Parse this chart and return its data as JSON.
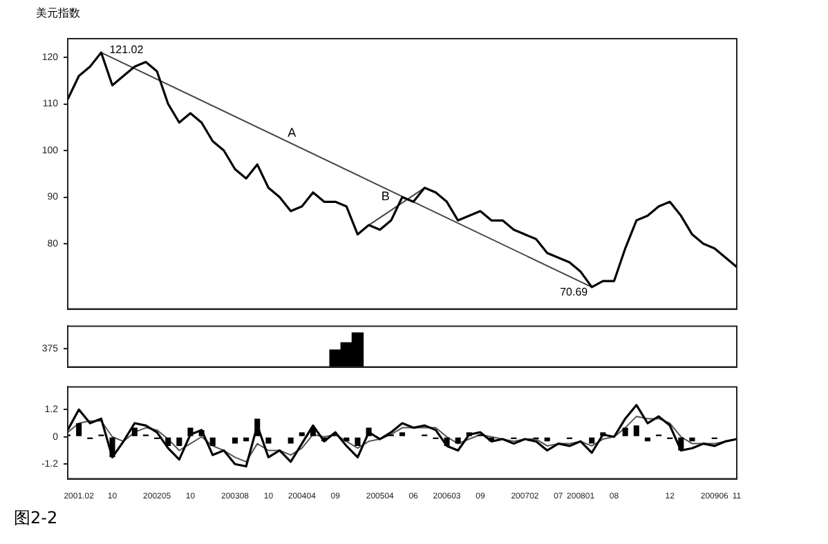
{
  "chart_data": [
    {
      "type": "line",
      "title": "美元指数",
      "tick_labels": "y",
      "grid": false,
      "legend": false,
      "marker": "none",
      "line_style": "solid",
      "ylim": [
        66,
        124
      ],
      "yticks": [
        80,
        90,
        100,
        110,
        120
      ],
      "categories": [
        null,
        "2001.02",
        null,
        null,
        "10",
        null,
        null,
        null,
        "200205",
        null,
        null,
        "10",
        null,
        null,
        null,
        "200308",
        null,
        null,
        "10",
        null,
        null,
        "200404",
        null,
        null,
        "09",
        null,
        null,
        null,
        "200504",
        null,
        null,
        "06",
        null,
        null,
        "200603",
        null,
        null,
        "09",
        null,
        null,
        null,
        "200702",
        null,
        null,
        "07",
        null,
        "200801",
        null,
        null,
        "08",
        null,
        null,
        null,
        null,
        "12",
        null,
        null,
        null,
        "200906",
        null,
        "11"
      ],
      "series": [
        {
          "color": "#000000",
          "values": [
            111,
            116,
            118,
            121.02,
            114,
            116,
            118,
            119,
            117,
            110,
            106,
            108,
            106,
            102,
            100,
            96,
            94,
            97,
            92,
            90,
            87,
            88,
            91,
            89,
            89,
            88,
            82,
            84,
            83,
            85,
            90,
            89,
            92,
            91,
            89,
            85,
            86,
            87,
            85,
            85,
            83,
            82,
            81,
            78,
            77,
            76,
            74,
            70.69,
            72,
            72,
            79,
            85,
            86,
            88,
            89,
            86,
            82,
            80,
            79,
            77,
            75
          ]
        },
        {
          "color": "#444444",
          "values": [
            null,
            null,
            null,
            121.02,
            null,
            null,
            null,
            null,
            null,
            null,
            null,
            null,
            null,
            null,
            null,
            null,
            null,
            null,
            null,
            null,
            null,
            null,
            null,
            null,
            null,
            null,
            null,
            null,
            null,
            null,
            null,
            null,
            null,
            null,
            null,
            null,
            null,
            null,
            null,
            null,
            null,
            null,
            null,
            null,
            null,
            null,
            null,
            70.69,
            null,
            null,
            null,
            null,
            null,
            null,
            null,
            null,
            null,
            null,
            null,
            null,
            null
          ]
        },
        {
          "color": "#444444",
          "values": [
            null,
            null,
            null,
            null,
            null,
            null,
            null,
            null,
            null,
            null,
            null,
            null,
            null,
            null,
            null,
            null,
            null,
            null,
            null,
            null,
            null,
            null,
            null,
            null,
            null,
            null,
            null,
            84,
            null,
            null,
            null,
            null,
            92,
            null,
            null,
            null,
            null,
            null,
            null,
            null,
            null,
            null,
            null,
            null,
            null,
            null,
            null,
            null,
            null,
            null,
            null,
            null,
            null,
            null,
            null,
            null,
            null,
            null,
            null,
            null,
            null
          ]
        }
      ],
      "annotations": [
        "121.02",
        "70.69",
        "A",
        "B"
      ]
    },
    {
      "type": "bar",
      "tick_labels": "y",
      "grid": false,
      "legend": false,
      "ylim": [
        0,
        840
      ],
      "yticks": [
        375
      ],
      "categories": [
        null,
        "2001.02",
        null,
        null,
        "10",
        null,
        null,
        null,
        "200205",
        null,
        null,
        "10",
        null,
        null,
        null,
        "200308",
        null,
        null,
        "10",
        null,
        null,
        "200404",
        null,
        null,
        "09",
        null,
        null,
        null,
        "200504",
        null,
        null,
        "06",
        null,
        null,
        "200603",
        null,
        null,
        "09",
        null,
        null,
        null,
        "200702",
        null,
        null,
        "07",
        null,
        "200801",
        null,
        null,
        "08",
        null,
        null,
        null,
        null,
        "12",
        null,
        null,
        null,
        "200906",
        null,
        "11"
      ],
      "series": [
        {
          "color": "#000000",
          "values": [
            null,
            null,
            null,
            null,
            null,
            null,
            null,
            null,
            null,
            null,
            null,
            null,
            null,
            null,
            null,
            null,
            null,
            null,
            null,
            null,
            null,
            null,
            null,
            null,
            350,
            500,
            700,
            null,
            null,
            null,
            null,
            null,
            null,
            null,
            null,
            null,
            null,
            null,
            null,
            null,
            null,
            null,
            null,
            null,
            null,
            null,
            null,
            null,
            null,
            null,
            null,
            null,
            null,
            null,
            null,
            null,
            null,
            null,
            null,
            null,
            null
          ]
        }
      ]
    },
    {
      "type": "line",
      "grid": false,
      "legend": false,
      "marker": "none",
      "line_style": "solid",
      "ylim": [
        -1.85,
        2.2
      ],
      "yticks": [
        1.2,
        0,
        -1.2
      ],
      "categories": [
        null,
        "2001.02",
        null,
        null,
        "10",
        null,
        null,
        null,
        "200205",
        null,
        null,
        "10",
        null,
        null,
        null,
        "200308",
        null,
        null,
        "10",
        null,
        null,
        "200404",
        null,
        null,
        "09",
        null,
        null,
        null,
        "200504",
        null,
        null,
        "06",
        null,
        null,
        "200603",
        null,
        null,
        "09",
        null,
        null,
        null,
        "200702",
        null,
        null,
        "07",
        null,
        "200801",
        null,
        null,
        "08",
        null,
        null,
        null,
        null,
        "12",
        null,
        null,
        null,
        "200906",
        null,
        "11"
      ],
      "series": [
        {
          "type": "bar",
          "color": "#000000",
          "values": [
            0.1,
            0.6,
            -0.1,
            0.1,
            -0.9,
            0,
            0.4,
            0.1,
            -0.1,
            -0.4,
            -0.4,
            0.4,
            0.3,
            -0.4,
            0,
            -0.3,
            -0.2,
            0.8,
            -0.3,
            0,
            -0.3,
            0.2,
            0.4,
            -0.2,
            0.1,
            -0.2,
            -0.4,
            0.4,
            0,
            0.1,
            0.2,
            0,
            0.1,
            -0.1,
            -0.4,
            -0.3,
            0.2,
            0.1,
            -0.2,
            0,
            -0.1,
            0,
            -0.1,
            -0.2,
            0,
            -0.1,
            0,
            -0.3,
            0.2,
            0,
            0.4,
            0.5,
            -0.2,
            0.1,
            -0.1,
            -0.6,
            -0.2,
            0,
            -0.1,
            0,
            0
          ]
        },
        {
          "color": "#000000",
          "values": [
            0.3,
            1.2,
            0.6,
            0.8,
            -0.9,
            -0.2,
            0.6,
            0.5,
            0.2,
            -0.5,
            -1.0,
            0.1,
            0.3,
            -0.8,
            -0.6,
            -1.2,
            -1.3,
            0.5,
            -0.9,
            -0.6,
            -1.1,
            -0.3,
            0.5,
            -0.2,
            0.2,
            -0.4,
            -0.9,
            0.2,
            -0.1,
            0.2,
            0.6,
            0.4,
            0.5,
            0.3,
            -0.4,
            -0.6,
            0.1,
            0.2,
            -0.2,
            -0.1,
            -0.3,
            -0.1,
            -0.2,
            -0.6,
            -0.3,
            -0.4,
            -0.2,
            -0.7,
            0.1,
            0.0,
            0.8,
            1.4,
            0.6,
            0.9,
            0.5,
            -0.6,
            -0.5,
            -0.3,
            -0.4,
            -0.2,
            -0.1
          ]
        },
        {
          "color": "#555555",
          "values": [
            0.2,
            0.6,
            0.7,
            0.7,
            0.0,
            -0.2,
            0.2,
            0.4,
            0.3,
            -0.1,
            -0.6,
            -0.3,
            0.0,
            -0.4,
            -0.6,
            -0.9,
            -1.1,
            -0.3,
            -0.6,
            -0.6,
            -0.8,
            -0.5,
            0.1,
            0.0,
            0.1,
            -0.2,
            -0.5,
            -0.2,
            -0.1,
            0.1,
            0.4,
            0.4,
            0.4,
            0.4,
            0.0,
            -0.3,
            -0.1,
            0.1,
            0.0,
            -0.1,
            -0.2,
            -0.1,
            -0.1,
            -0.4,
            -0.3,
            -0.3,
            -0.2,
            -0.4,
            -0.1,
            0.0,
            0.4,
            0.9,
            0.8,
            0.8,
            0.6,
            0.0,
            -0.3,
            -0.3,
            -0.3,
            -0.2,
            -0.1
          ]
        }
      ],
      "annotations": [
        "图2-2"
      ]
    }
  ]
}
